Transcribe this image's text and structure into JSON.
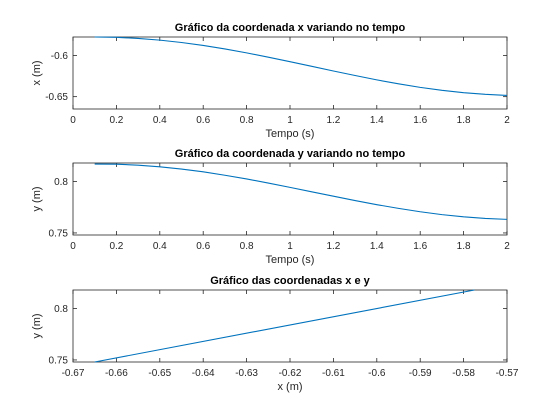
{
  "figure": {
    "background": "#ffffff",
    "axes_color": "#262626",
    "line_color": "#0072bd"
  },
  "chart_data": [
    {
      "type": "line",
      "title": "Gráfico da coordenada x variando no tempo",
      "xlabel": "Tempo (s)",
      "ylabel": "x (m)",
      "xlim": [
        0,
        2
      ],
      "ylim": [
        -0.665,
        -0.5775
      ],
      "grid": false,
      "x_ticks": [
        0,
        0.2,
        0.4,
        0.6,
        0.8,
        1,
        1.2,
        1.4,
        1.6,
        1.8,
        2
      ],
      "x_tick_labels": [
        "0",
        "0.2",
        "0.4",
        "0.6",
        "0.8",
        "1",
        "1.2",
        "1.4",
        "1.6",
        "1.8",
        "2"
      ],
      "y_ticks": [
        -0.6,
        -0.65
      ],
      "y_tick_labels": [
        "-0.6",
        "-0.65"
      ],
      "series": [
        {
          "x": [
            0.1,
            0.2,
            0.3,
            0.4,
            0.5,
            0.6,
            0.7,
            0.8,
            0.9,
            1.0,
            1.1,
            1.2,
            1.3,
            1.4,
            1.5,
            1.6,
            1.7,
            1.8,
            1.9,
            2.0
          ],
          "y": [
            -0.5775,
            -0.5779,
            -0.5792,
            -0.5813,
            -0.5842,
            -0.5878,
            -0.592,
            -0.5968,
            -0.602,
            -0.6075,
            -0.6131,
            -0.6188,
            -0.6243,
            -0.6296,
            -0.6344,
            -0.6387,
            -0.6423,
            -0.6452,
            -0.6472,
            -0.6485
          ]
        }
      ]
    },
    {
      "type": "line",
      "title": "Gráfico da coordenada y variando no tempo",
      "xlabel": "Tempo (s)",
      "ylabel": "y (m)",
      "xlim": [
        0,
        2
      ],
      "ylim": [
        0.748,
        0.818
      ],
      "grid": false,
      "x_ticks": [
        0,
        0.2,
        0.4,
        0.6,
        0.8,
        1,
        1.2,
        1.4,
        1.6,
        1.8,
        2
      ],
      "x_tick_labels": [
        "0",
        "0.2",
        "0.4",
        "0.6",
        "0.8",
        "1",
        "1.2",
        "1.4",
        "1.6",
        "1.8",
        "2"
      ],
      "y_ticks": [
        0.8,
        0.75
      ],
      "y_tick_labels": [
        "0.8",
        "0.75"
      ],
      "series": [
        {
          "x": [
            0.1,
            0.2,
            0.3,
            0.4,
            0.5,
            0.6,
            0.7,
            0.8,
            0.9,
            1.0,
            1.1,
            1.2,
            1.3,
            1.4,
            1.5,
            1.6,
            1.7,
            1.8,
            1.9,
            2.0
          ],
          "y": [
            0.817,
            0.8168,
            0.8159,
            0.8143,
            0.8121,
            0.8094,
            0.8061,
            0.8025,
            0.7985,
            0.7943,
            0.79,
            0.7857,
            0.7815,
            0.7775,
            0.7739,
            0.7706,
            0.7678,
            0.7657,
            0.7641,
            0.7632
          ]
        }
      ]
    },
    {
      "type": "line",
      "title": "Gráfico das coordenadas x e y",
      "xlabel": "x (m)",
      "ylabel": "y (m)",
      "xlim": [
        -0.67,
        -0.57
      ],
      "ylim": [
        0.748,
        0.818
      ],
      "grid": false,
      "x_ticks": [
        -0.67,
        -0.66,
        -0.65,
        -0.64,
        -0.63,
        -0.62,
        -0.61,
        -0.6,
        -0.59,
        -0.58,
        -0.57
      ],
      "x_tick_labels": [
        "-0.67",
        "-0.66",
        "-0.65",
        "-0.64",
        "-0.63",
        "-0.62",
        "-0.61",
        "-0.6",
        "-0.59",
        "-0.58",
        "-0.57"
      ],
      "y_ticks": [
        0.8,
        0.75
      ],
      "y_tick_labels": [
        "0.8",
        "0.75"
      ],
      "series": [
        {
          "x": [
            -0.665,
            -0.5775
          ],
          "y": [
            0.748,
            0.818
          ]
        }
      ]
    }
  ]
}
